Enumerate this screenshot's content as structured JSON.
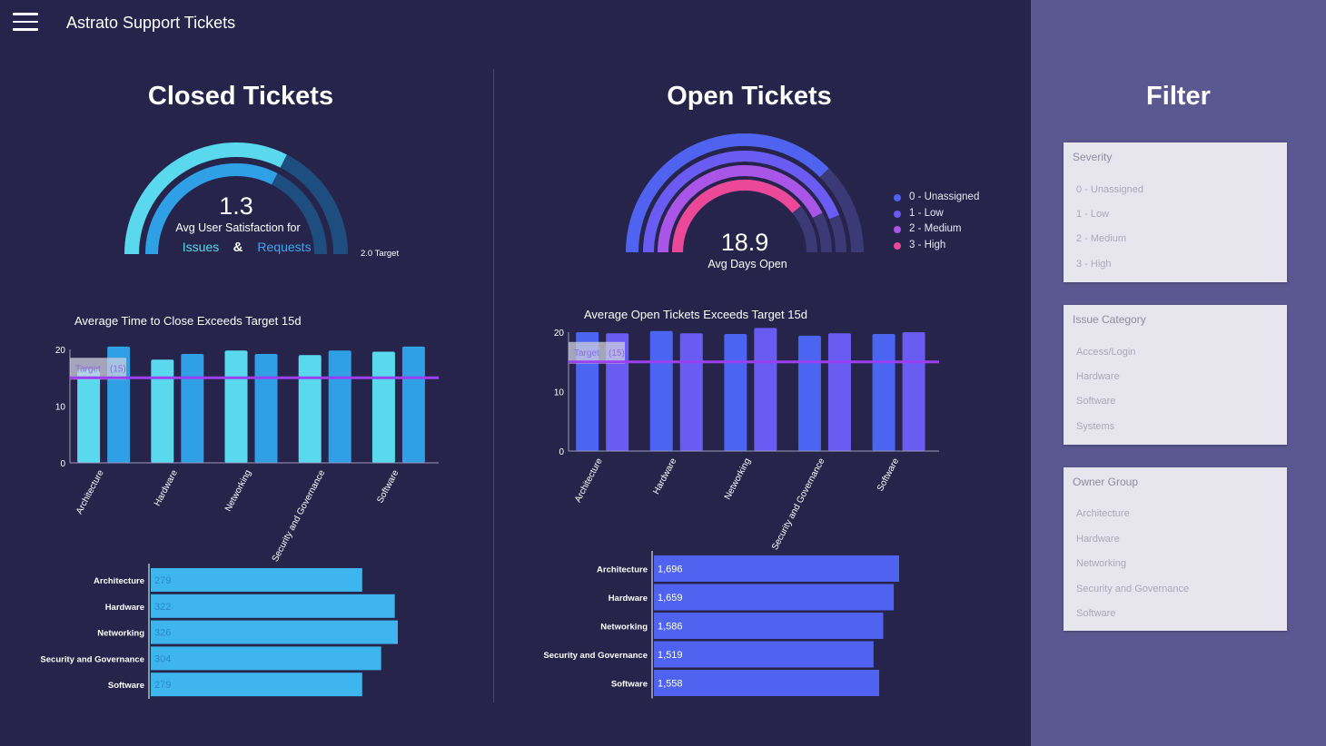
{
  "app": {
    "title": "Astrato Support Tickets",
    "menu_icon": "hamburger-menu-icon"
  },
  "closed": {
    "title": "Closed Tickets",
    "gauge": {
      "value": "1.3",
      "label": "Avg User Satisfaction for",
      "issues": "Issues",
      "amp": "&",
      "requests": "Requests",
      "target": "2.0 Target",
      "issues_fill": 0.65,
      "requests_fill": 0.65
    },
    "bar_title": "Average Time to Close Exceeds Target 15d",
    "target_label": "Target",
    "target_value": "(15)",
    "hbar_values": [
      "279",
      "322",
      "326",
      "304",
      "279"
    ]
  },
  "open": {
    "title": "Open Tickets",
    "gauge": {
      "value": "18.9",
      "label": "Avg Days Open"
    },
    "legend": [
      {
        "label": "0 - Unassigned",
        "color": "#4f63f0"
      },
      {
        "label": "1 - Low",
        "color": "#6a5cf2"
      },
      {
        "label": "2 - Medium",
        "color": "#a855e8"
      },
      {
        "label": "3 - High",
        "color": "#ec4899"
      }
    ],
    "bar_title": "Average Open Tickets Exceeds Target 15d",
    "target_label": "Target",
    "target_value": "(15)",
    "hbar_values": [
      "1,696",
      "1,659",
      "1,586",
      "1,519",
      "1,558"
    ]
  },
  "filter": {
    "title": "Filter",
    "severity": {
      "title": "Severity",
      "items": [
        "0 - Unassigned",
        "1 - Low",
        "2 - Medium",
        "3 - High"
      ]
    },
    "issue_category": {
      "title": "Issue Category",
      "items": [
        "Access/Login",
        "Hardware",
        "Software",
        "Systems"
      ]
    },
    "owner_group": {
      "title": "Owner Group",
      "items": [
        "Architecture",
        "Hardware",
        "Networking",
        "Security and Governance",
        "Software"
      ]
    }
  },
  "chart_data": [
    {
      "type": "bar",
      "title": "Average Time to Close Exceeds Target 15d",
      "categories": [
        "Architecture",
        "Hardware",
        "Networking",
        "Security and Governance",
        "Software"
      ],
      "series": [
        {
          "values": [
            16.5,
            18.2,
            19.8,
            19.0,
            19.6
          ],
          "color": "#5ad9ee"
        },
        {
          "values": [
            20.5,
            19.2,
            19.2,
            19.8,
            20.5
          ],
          "color": "#2f9fe6"
        }
      ],
      "ylim": [
        0,
        20
      ],
      "yticks": [
        0,
        10,
        20
      ],
      "target": 15
    },
    {
      "type": "bar",
      "title": "Average Open Tickets Exceeds Target 15d",
      "categories": [
        "Architecture",
        "Hardware",
        "Networking",
        "Security and Governance",
        "Software"
      ],
      "series": [
        {
          "values": [
            20.0,
            20.2,
            19.7,
            19.4,
            19.7
          ],
          "color": "#4b64f1"
        },
        {
          "values": [
            19.8,
            19.8,
            20.7,
            19.8,
            20.0
          ],
          "color": "#6a5cf2"
        }
      ],
      "ylim": [
        0,
        20
      ],
      "yticks": [
        0,
        10,
        20
      ],
      "target": 15
    },
    {
      "type": "bar",
      "orientation": "horizontal",
      "categories": [
        "Architecture",
        "Hardware",
        "Networking",
        "Security and Governance",
        "Software"
      ],
      "values": [
        279,
        322,
        326,
        304,
        279
      ],
      "color": "#3fb5ee"
    },
    {
      "type": "bar",
      "orientation": "horizontal",
      "categories": [
        "Architecture",
        "Hardware",
        "Networking",
        "Security and Governance",
        "Software"
      ],
      "values": [
        1696,
        1659,
        1586,
        1519,
        1558
      ],
      "color": "#4f63f0"
    }
  ]
}
